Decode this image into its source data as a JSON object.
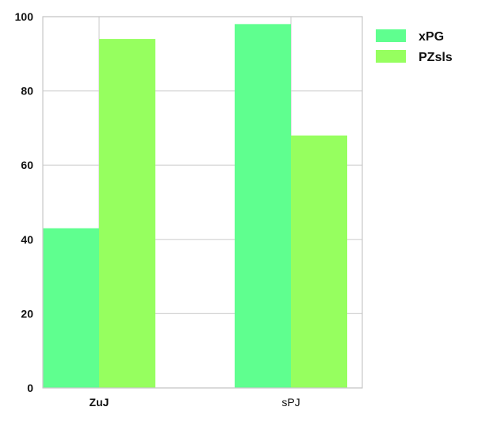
{
  "chart_data": {
    "type": "bar",
    "title": "",
    "xlabel": "",
    "ylabel": "",
    "categories": [
      "ZuJ",
      "sPJ"
    ],
    "series": [
      {
        "name": "xPG",
        "values": [
          43,
          98
        ],
        "color": "#5fff8f"
      },
      {
        "name": "PZsls",
        "values": [
          94,
          68
        ],
        "color": "#96ff5f"
      }
    ],
    "ylim": [
      0,
      100
    ],
    "yticks": [
      0,
      20,
      40,
      60,
      80,
      100
    ],
    "grid": true,
    "legend": "top-right"
  }
}
